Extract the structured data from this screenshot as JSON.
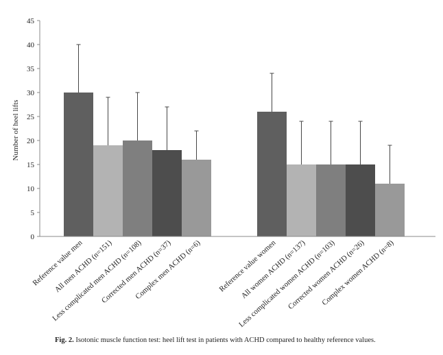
{
  "chart_data": {
    "type": "bar",
    "ylabel": "Number of heel lifts",
    "xlabel": "",
    "ylim": [
      0,
      45
    ],
    "yticks": [
      0,
      5,
      10,
      15,
      20,
      25,
      30,
      35,
      40,
      45
    ],
    "grid": false,
    "legend": "none",
    "groups": [
      {
        "bars": [
          {
            "label": "Reference value men",
            "value": 30,
            "error": 10,
            "color": "#5f5f5f"
          },
          {
            "label": "All men ACHD (n=151)",
            "value": 19,
            "error": 10,
            "color": "#b3b3b3"
          },
          {
            "label": "Less complicated men ACHD (n=108)",
            "value": 20,
            "error": 10,
            "color": "#7f7f7f"
          },
          {
            "label": "Corrected men ACHD (n=37)",
            "value": 18,
            "error": 9,
            "color": "#4d4d4d"
          },
          {
            "label": "Complex men ACHD (n=6)",
            "value": 16,
            "error": 6,
            "color": "#999999"
          }
        ]
      },
      {
        "bars": [
          {
            "label": "Reference value women",
            "value": 26,
            "error": 8,
            "color": "#5f5f5f"
          },
          {
            "label": "All women ACHD (n=137)",
            "value": 15,
            "error": 9,
            "color": "#b3b3b3"
          },
          {
            "label": "Less complicated women ACHD (n=103)",
            "value": 15,
            "error": 9,
            "color": "#7f7f7f"
          },
          {
            "label": "Corrected women ACHD (n=26)",
            "value": 15,
            "error": 9,
            "color": "#4d4d4d"
          },
          {
            "label": "Complex women ACHD (n=8)",
            "value": 11,
            "error": 8,
            "color": "#999999"
          }
        ]
      }
    ]
  },
  "caption": {
    "label": "Fig. 2.",
    "text": "Isotonic muscle function test: heel lift test in patients with ACHD compared to healthy reference values."
  }
}
